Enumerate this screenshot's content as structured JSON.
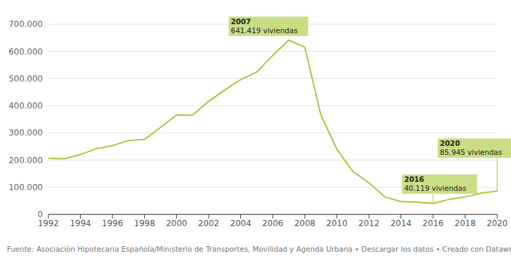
{
  "chart_data": {
    "type": "line",
    "x": [
      1992,
      1993,
      1994,
      1995,
      1996,
      1997,
      1998,
      1999,
      2000,
      2001,
      2002,
      2003,
      2004,
      2005,
      2006,
      2007,
      2008,
      2009,
      2010,
      2011,
      2012,
      2013,
      2014,
      2015,
      2016,
      2017,
      2018,
      2019,
      2020
    ],
    "values": [
      206000,
      205000,
      220000,
      242000,
      253000,
      272000,
      276000,
      320000,
      366000,
      365000,
      416000,
      458000,
      496000,
      524000,
      585000,
      641419,
      615000,
      366000,
      240000,
      158000,
      116000,
      64000,
      47000,
      45000,
      40119,
      55000,
      64000,
      78000,
      85945
    ],
    "color": "#a5c63b",
    "xlim": [
      1992,
      2020
    ],
    "xticks": [
      1992,
      1994,
      1996,
      1998,
      2000,
      2002,
      2004,
      2006,
      2008,
      2010,
      2012,
      2014,
      2016,
      2018,
      2020
    ],
    "ylim": [
      0,
      700000
    ],
    "yticks": [
      0,
      {
        "value": 100000,
        "label": "100.000"
      },
      {
        "value": 200000,
        "label": "200.000"
      },
      {
        "value": 300000,
        "label": "300.000"
      },
      {
        "value": 400000,
        "label": "400.000"
      },
      {
        "value": 500000,
        "label": "500.000"
      },
      {
        "value": 600000,
        "label": "600.000"
      },
      {
        "value": 700000,
        "label": "700.000"
      }
    ],
    "grid": true,
    "annotations": [
      {
        "x": 2007,
        "y": 641419,
        "label": [
          "2007",
          "641.419 viviendas"
        ]
      },
      {
        "x": 2016,
        "y": 40119,
        "label": [
          "2016",
          "40.119 viviendas"
        ]
      },
      {
        "x": 2020,
        "y": 85945,
        "label": [
          "2020",
          "85.945 viviendas"
        ]
      }
    ],
    "footer": "Fuente: Asociación Hipotecaria Española/Ministerio de Transportes, Movilidad y Agenda Urbana • Descargar los datos • Creado con Datawrapper"
  }
}
